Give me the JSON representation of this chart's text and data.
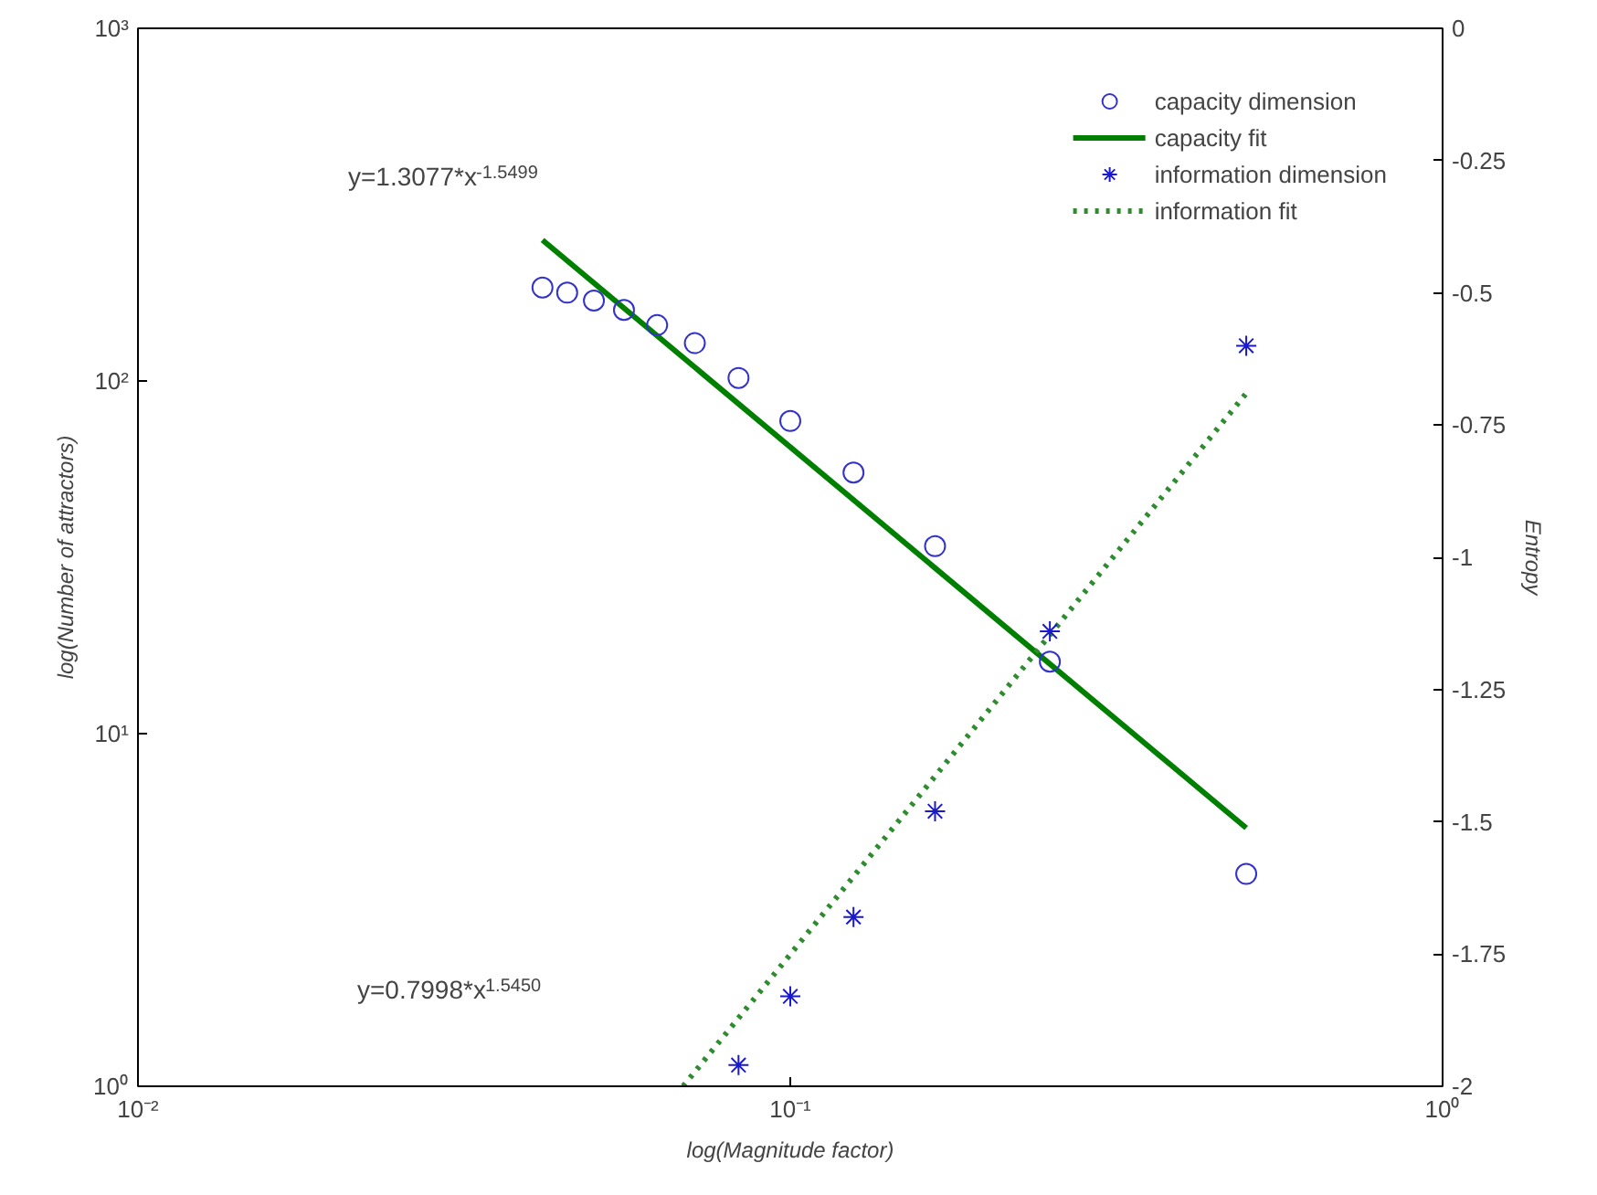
{
  "chart_data": {
    "type": "scatter",
    "xlabel": "log(Magnitude factor)",
    "ylabel": "log(Number of attractors)",
    "y2label": "Entropy",
    "log": "xy",
    "grid": false,
    "legend": "top right",
    "xlim": [
      0.01,
      1
    ],
    "xticks": [
      {
        "value": 0.01,
        "label": "10⁻²"
      },
      {
        "value": 0.1,
        "label": "10⁻¹"
      },
      {
        "value": 1,
        "label": "10⁰"
      }
    ],
    "ylim": [
      1,
      1000
    ],
    "yticks": [
      {
        "value": 1,
        "label": "10⁰"
      },
      {
        "value": 10,
        "label": "10¹"
      },
      {
        "value": 100,
        "label": "10²"
      },
      {
        "value": 1000,
        "label": "10³"
      }
    ],
    "y2lim": [
      -2,
      0
    ],
    "y2ticks": [
      -2,
      -1.75,
      -1.5,
      -1.25,
      -1,
      -0.75,
      -0.5,
      -0.25,
      0
    ],
    "annotations": [
      "y=1.3077*x$^{-1.5499}$",
      "y=0.7998*x$^{1.5450}$"
    ],
    "series": [
      {
        "name": "capacity dimension",
        "marker": "circle",
        "color": "#3333cc",
        "x": [
          0.0417,
          0.0455,
          0.05,
          0.0556,
          0.0625,
          0.0714,
          0.0833,
          0.1,
          0.125,
          0.1667,
          0.25,
          0.5
        ],
        "values": [
          184,
          178,
          169,
          159,
          144,
          128,
          102,
          77,
          55,
          34,
          16,
          4
        ]
      },
      {
        "name": "capacity fit",
        "type": "line",
        "line_style": "solid",
        "color": "#007f00",
        "x": [
          0.0417,
          0.5
        ],
        "values": [
          251,
          5.4
        ]
      },
      {
        "name": "information dimension",
        "marker": "cross",
        "axis": "y2",
        "color": "#1a1acc",
        "x": [
          0.0833,
          0.1,
          0.125,
          0.1667,
          0.25,
          0.5
        ],
        "values": [
          -1.96,
          -1.83,
          -1.68,
          -1.48,
          -1.14,
          -0.6
        ]
      },
      {
        "name": "information fit",
        "type": "line",
        "line_style": "dotted",
        "axis": "y2",
        "color": "#2e8b2e",
        "x": [
          0.0685,
          0.5
        ],
        "values": [
          -2,
          -0.69
        ]
      }
    ]
  }
}
